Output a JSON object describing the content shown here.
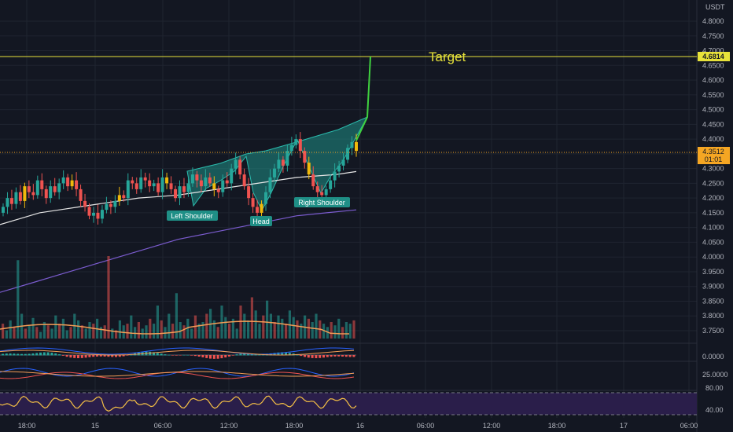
{
  "colors": {
    "background": "#131722",
    "grid": "#1f2430",
    "up": "#26a69a",
    "down": "#ef5350",
    "candle_yellow": "#f0b90b",
    "target_line": "#e7e23a",
    "projection": "#3fd13f",
    "pattern_fill": "#1f8f86",
    "ma_short": "#e6e6e6",
    "ma_long": "#7b5ccf",
    "vol_ma": "#f39c55",
    "rsi": "#f5c045",
    "rsi_band": "#2a1e4a",
    "current_price_bg": "#f5a623"
  },
  "price_axis": {
    "currency": "USDT",
    "ticks": [
      "4.8000",
      "4.7500",
      "4.7000",
      "4.6500",
      "4.6000",
      "4.5500",
      "4.5000",
      "4.4500",
      "4.4000",
      "4.3500",
      "4.3000",
      "4.2500",
      "4.2000",
      "4.1500",
      "4.1000",
      "4.0500",
      "4.0000",
      "3.9500",
      "3.9000",
      "3.8500",
      "3.8000",
      "3.7500"
    ],
    "target_label": "4.6814",
    "current_price": "4.3512",
    "countdown": "01:01"
  },
  "time_axis": {
    "ticks": [
      "18:00",
      "15",
      "06:00",
      "12:00",
      "18:00",
      "16",
      "06:00",
      "12:00",
      "18:00",
      "17",
      "06:00"
    ]
  },
  "annotations": {
    "target": "Target",
    "left_shoulder": "Left Shoulder",
    "head": "Head",
    "right_shoulder": "Right Shoulder"
  },
  "macd_axis": {
    "ticks": [
      "0.0000"
    ]
  },
  "dmi_axis": {
    "ticks": [
      "25.0000"
    ]
  },
  "rsi_axis": {
    "ticks": [
      "80.00",
      "40.00"
    ]
  },
  "chart_data": {
    "type": "candlestick",
    "symbol_quote": "USDT",
    "pattern": "inverse head and shoulders",
    "target_price": 4.6814,
    "current_price": 4.3512,
    "ylim": [
      3.72,
      4.82
    ],
    "key_levels": {
      "left_shoulder_low": 4.16,
      "head_low": 4.14,
      "right_shoulder_low": 4.2,
      "neckline_end": 4.47
    },
    "candles_close": [
      4.17,
      4.2,
      4.18,
      4.22,
      4.19,
      4.24,
      4.22,
      4.21,
      4.26,
      4.23,
      4.2,
      4.24,
      4.22,
      4.25,
      4.27,
      4.24,
      4.26,
      4.23,
      4.19,
      4.17,
      4.14,
      4.15,
      4.13,
      4.16,
      4.18,
      4.17,
      4.19,
      4.21,
      4.2,
      4.26,
      4.25,
      4.23,
      4.27,
      4.26,
      4.24,
      4.25,
      4.22,
      4.27,
      4.25,
      4.23,
      4.2,
      4.24,
      4.22,
      4.25,
      4.28,
      4.26,
      4.24,
      4.27,
      4.25,
      4.23,
      4.22,
      4.26,
      4.25,
      4.3,
      4.33,
      4.28,
      4.24,
      4.2,
      4.17,
      4.15,
      4.18,
      4.22,
      4.27,
      4.3,
      4.33,
      4.31,
      4.36,
      4.38,
      4.4,
      4.36,
      4.32,
      4.28,
      4.24,
      4.22,
      4.21,
      4.23,
      4.26,
      4.29,
      4.31,
      4.33,
      4.37,
      4.39,
      4.36
    ],
    "ma_short": [
      4.11,
      4.13,
      4.15,
      4.16,
      4.17,
      4.18,
      4.19,
      4.2,
      4.205,
      4.21,
      4.22,
      4.23,
      4.24,
      4.25,
      4.26,
      4.27,
      4.275,
      4.28,
      4.29
    ],
    "ma_long": [
      3.88,
      3.91,
      3.94,
      3.97,
      4.0,
      4.03,
      4.06,
      4.08,
      4.1,
      4.12,
      4.14,
      4.15,
      4.16
    ],
    "volume_max": 100,
    "rsi_band": [
      40,
      80
    ]
  }
}
